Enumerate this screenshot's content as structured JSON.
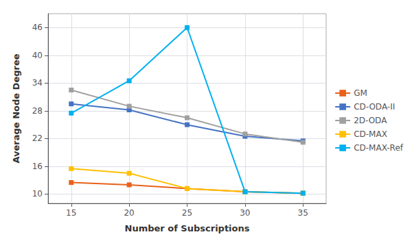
{
  "chart_data": {
    "type": "line",
    "xlabel": "Number of Subscriptions",
    "ylabel": "Average Node Degree",
    "x": [
      15,
      20,
      25,
      30,
      35
    ],
    "series": [
      {
        "name": "GM",
        "color": "#e8611a",
        "values": [
          12.5,
          12.0,
          11.2,
          10.5,
          10.2
        ]
      },
      {
        "name": "CD-ODA-II",
        "color": "#4472c4",
        "values": [
          29.5,
          28.2,
          25.0,
          22.5,
          21.5
        ]
      },
      {
        "name": "2D-ODA",
        "color": "#a0a0a0",
        "values": [
          32.5,
          29.0,
          26.5,
          23.0,
          21.2
        ]
      },
      {
        "name": "CD-MAX",
        "color": "#ffc000",
        "values": [
          15.5,
          14.5,
          11.2,
          10.5,
          10.2
        ]
      },
      {
        "name": "CD-MAX-Ref",
        "color": "#00b0f0",
        "values": [
          27.5,
          34.5,
          46.0,
          10.5,
          10.2
        ]
      }
    ],
    "marker": "square",
    "xlim": [
      13,
      37
    ],
    "ylim": [
      8,
      49
    ],
    "xticks": [
      15,
      20,
      25,
      30,
      35
    ],
    "yticks": [
      10,
      16,
      22,
      28,
      34,
      40,
      46
    ],
    "grid": true,
    "legend": "right"
  }
}
